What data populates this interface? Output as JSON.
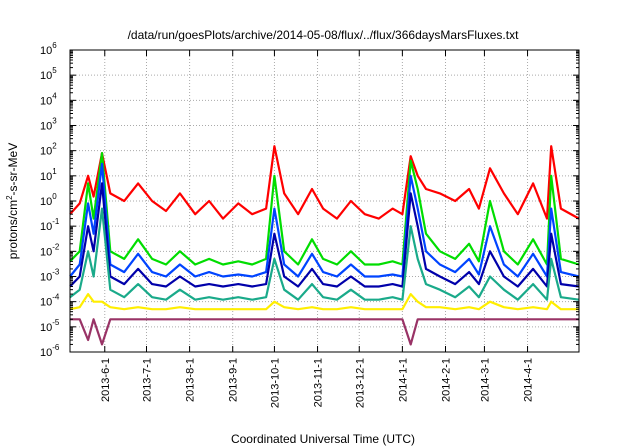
{
  "chart_data": {
    "type": "line",
    "title": "/data/run/goesPlots/archive/2014-05-08/flux/../flux/366daysMarsFluxes.txt",
    "xlabel": "Coordinated Universal Time (UTC)",
    "ylabel": {
      "prefix": "protons/cm",
      "sup": "2",
      "suffix": "-s-sr-MeV"
    },
    "scale": {
      "y": "log10"
    },
    "xlim": [
      "2013-05-07",
      "2014-05-08"
    ],
    "ylim": [
      1e-06,
      1000000.0
    ],
    "grid": true,
    "legend": "none",
    "y_tick_labels": [
      {
        "base": "10",
        "exp": "-6"
      },
      {
        "base": "10",
        "exp": "-5"
      },
      {
        "base": "10",
        "exp": "-4"
      },
      {
        "base": "10",
        "exp": "-3"
      },
      {
        "base": "10",
        "exp": "-2"
      },
      {
        "base": "10",
        "exp": "-1"
      },
      {
        "base": "10",
        "exp": "0"
      },
      {
        "base": "10",
        "exp": "1"
      },
      {
        "base": "10",
        "exp": "2"
      },
      {
        "base": "10",
        "exp": "3"
      },
      {
        "base": "10",
        "exp": "4"
      },
      {
        "base": "10",
        "exp": "5"
      },
      {
        "base": "10",
        "exp": "6"
      }
    ],
    "x_ticks": [
      {
        "label": "2013-6-1",
        "date": "2013-06-01"
      },
      {
        "label": "2013-7-1",
        "date": "2013-07-01"
      },
      {
        "label": "2013-8-1",
        "date": "2013-08-01"
      },
      {
        "label": "2013-9-1",
        "date": "2013-09-01"
      },
      {
        "label": "2013-10-1",
        "date": "2013-10-01"
      },
      {
        "label": "2013-11-1",
        "date": "2013-11-01"
      },
      {
        "label": "2013-12-1",
        "date": "2013-12-01"
      },
      {
        "label": "2014-1-1",
        "date": "2014-01-01"
      },
      {
        "label": "2014-2-1",
        "date": "2014-02-01"
      },
      {
        "label": "2014-3-1",
        "date": "2014-03-01"
      },
      {
        "label": "2014-4-1",
        "date": "2014-04-01"
      }
    ],
    "series": [
      {
        "color": "#ff0000",
        "x": [
          "2013-05-07",
          "2013-05-14",
          "2013-05-20",
          "2013-05-24",
          "2013-05-30",
          "2013-06-05",
          "2013-06-15",
          "2013-06-25",
          "2013-07-05",
          "2013-07-15",
          "2013-07-25",
          "2013-08-05",
          "2013-08-15",
          "2013-08-25",
          "2013-09-05",
          "2013-09-15",
          "2013-09-25",
          "2013-10-01",
          "2013-10-08",
          "2013-10-18",
          "2013-10-28",
          "2013-11-05",
          "2013-11-15",
          "2013-11-25",
          "2013-12-05",
          "2013-12-15",
          "2013-12-25",
          "2014-01-01",
          "2014-01-07",
          "2014-01-12",
          "2014-01-18",
          "2014-01-28",
          "2014-02-08",
          "2014-02-18",
          "2014-02-25",
          "2014-03-05",
          "2014-03-15",
          "2014-03-25",
          "2014-04-05",
          "2014-04-15",
          "2014-04-18",
          "2014-04-25",
          "2014-05-08"
        ],
        "y": [
          0.3,
          0.8,
          10,
          1.5,
          80,
          2,
          1,
          5,
          1,
          0.4,
          2,
          0.3,
          1,
          0.2,
          0.8,
          0.3,
          0.5,
          150,
          2,
          0.3,
          3,
          0.5,
          0.2,
          1,
          0.3,
          0.2,
          0.5,
          0.3,
          60,
          10,
          3,
          2,
          1,
          3,
          0.5,
          20,
          2,
          0.3,
          5,
          0.2,
          150,
          0.5,
          0.2
        ]
      },
      {
        "color": "#00dd00",
        "x": [
          "2013-05-07",
          "2013-05-14",
          "2013-05-20",
          "2013-05-24",
          "2013-05-30",
          "2013-06-05",
          "2013-06-15",
          "2013-06-25",
          "2013-07-05",
          "2013-07-15",
          "2013-07-25",
          "2013-08-05",
          "2013-08-15",
          "2013-08-25",
          "2013-09-05",
          "2013-09-15",
          "2013-09-25",
          "2013-10-01",
          "2013-10-08",
          "2013-10-18",
          "2013-10-28",
          "2013-11-05",
          "2013-11-15",
          "2013-11-25",
          "2013-12-05",
          "2013-12-15",
          "2013-12-25",
          "2014-01-01",
          "2014-01-07",
          "2014-01-12",
          "2014-01-18",
          "2014-01-28",
          "2014-02-08",
          "2014-02-18",
          "2014-02-25",
          "2014-03-05",
          "2014-03-15",
          "2014-03-25",
          "2014-04-05",
          "2014-04-15",
          "2014-04-18",
          "2014-04-25",
          "2014-05-08"
        ],
        "y": [
          0.004,
          0.01,
          5,
          0.2,
          80,
          0.01,
          0.005,
          0.03,
          0.005,
          0.003,
          0.01,
          0.003,
          0.005,
          0.003,
          0.004,
          0.003,
          0.005,
          10,
          0.01,
          0.003,
          0.03,
          0.005,
          0.003,
          0.01,
          0.003,
          0.003,
          0.004,
          0.003,
          40,
          3,
          0.05,
          0.01,
          0.005,
          0.02,
          0.004,
          1,
          0.01,
          0.003,
          0.03,
          0.003,
          10,
          0.005,
          0.003
        ]
      },
      {
        "color": "#0044ff",
        "x": [
          "2013-05-07",
          "2013-05-14",
          "2013-05-20",
          "2013-05-24",
          "2013-05-30",
          "2013-06-05",
          "2013-06-15",
          "2013-06-25",
          "2013-07-05",
          "2013-07-15",
          "2013-07-25",
          "2013-08-05",
          "2013-08-15",
          "2013-08-25",
          "2013-09-05",
          "2013-09-15",
          "2013-09-25",
          "2013-10-01",
          "2013-10-08",
          "2013-10-18",
          "2013-10-28",
          "2013-11-05",
          "2013-11-15",
          "2013-11-25",
          "2013-12-05",
          "2013-12-15",
          "2013-12-25",
          "2014-01-01",
          "2014-01-07",
          "2014-01-12",
          "2014-01-18",
          "2014-01-28",
          "2014-02-08",
          "2014-02-18",
          "2014-02-25",
          "2014-03-05",
          "2014-03-15",
          "2014-03-25",
          "2014-04-05",
          "2014-04-15",
          "2014-04-18",
          "2014-04-25",
          "2014-05-08"
        ],
        "y": [
          0.001,
          0.003,
          0.8,
          0.05,
          30,
          0.003,
          0.0015,
          0.008,
          0.0015,
          0.001,
          0.003,
          0.001,
          0.0015,
          0.001,
          0.0012,
          0.001,
          0.0015,
          0.5,
          0.003,
          0.001,
          0.008,
          0.0015,
          0.001,
          0.003,
          0.001,
          0.001,
          0.0012,
          0.001,
          10,
          0.5,
          0.01,
          0.003,
          0.0015,
          0.005,
          0.0012,
          0.1,
          0.003,
          0.001,
          0.008,
          0.001,
          0.5,
          0.0015,
          0.001
        ]
      },
      {
        "color": "#0000aa",
        "x": [
          "2013-05-07",
          "2013-05-14",
          "2013-05-20",
          "2013-05-24",
          "2013-05-30",
          "2013-06-05",
          "2013-06-15",
          "2013-06-25",
          "2013-07-05",
          "2013-07-15",
          "2013-07-25",
          "2013-08-05",
          "2013-08-15",
          "2013-08-25",
          "2013-09-05",
          "2013-09-15",
          "2013-09-25",
          "2013-10-01",
          "2013-10-08",
          "2013-10-18",
          "2013-10-28",
          "2013-11-05",
          "2013-11-15",
          "2013-11-25",
          "2013-12-05",
          "2013-12-15",
          "2013-12-25",
          "2014-01-01",
          "2014-01-07",
          "2014-01-12",
          "2014-01-18",
          "2014-01-28",
          "2014-02-08",
          "2014-02-18",
          "2014-02-25",
          "2014-03-05",
          "2014-03-15",
          "2014-03-25",
          "2014-04-05",
          "2014-04-15",
          "2014-04-18",
          "2014-04-25",
          "2014-05-08"
        ],
        "y": [
          0.0004,
          0.001,
          0.1,
          0.01,
          5,
          0.001,
          0.0005,
          0.002,
          0.0005,
          0.0004,
          0.001,
          0.0004,
          0.0005,
          0.0004,
          0.0005,
          0.0004,
          0.0005,
          0.05,
          0.001,
          0.0004,
          0.002,
          0.0005,
          0.0004,
          0.001,
          0.0004,
          0.0004,
          0.0005,
          0.0004,
          2,
          0.1,
          0.002,
          0.001,
          0.0005,
          0.0015,
          0.0005,
          0.01,
          0.001,
          0.0004,
          0.002,
          0.0004,
          0.05,
          0.0005,
          0.0004
        ]
      },
      {
        "color": "#1aaa8a",
        "x": [
          "2013-05-07",
          "2013-05-14",
          "2013-05-20",
          "2013-05-24",
          "2013-05-30",
          "2013-06-05",
          "2013-06-15",
          "2013-06-25",
          "2013-07-05",
          "2013-07-15",
          "2013-07-25",
          "2013-08-05",
          "2013-08-15",
          "2013-08-25",
          "2013-09-05",
          "2013-09-15",
          "2013-09-25",
          "2013-10-01",
          "2013-10-08",
          "2013-10-18",
          "2013-10-28",
          "2013-11-05",
          "2013-11-15",
          "2013-11-25",
          "2013-12-05",
          "2013-12-15",
          "2013-12-25",
          "2014-01-01",
          "2014-01-07",
          "2014-01-12",
          "2014-01-18",
          "2014-01-28",
          "2014-02-08",
          "2014-02-18",
          "2014-02-25",
          "2014-03-05",
          "2014-03-15",
          "2014-03-25",
          "2014-04-05",
          "2014-04-15",
          "2014-04-18",
          "2014-04-25",
          "2014-05-08"
        ],
        "y": [
          0.00015,
          0.0003,
          0.01,
          0.001,
          0.5,
          0.0003,
          0.00015,
          0.0005,
          0.00015,
          0.00012,
          0.0003,
          0.00012,
          0.00015,
          0.00012,
          0.00015,
          0.00012,
          0.00015,
          0.005,
          0.0003,
          0.00012,
          0.0005,
          0.00015,
          0.00012,
          0.0003,
          0.00012,
          0.00012,
          0.00015,
          0.00012,
          0.1,
          0.005,
          0.0005,
          0.0003,
          0.00015,
          0.0004,
          0.00015,
          0.001,
          0.0003,
          0.00012,
          0.0005,
          0.00012,
          0.005,
          0.00015,
          0.00012
        ]
      },
      {
        "color": "#ffee00",
        "x": [
          "2013-05-07",
          "2013-05-14",
          "2013-05-20",
          "2013-05-24",
          "2013-05-30",
          "2013-06-05",
          "2013-06-15",
          "2013-06-25",
          "2013-07-05",
          "2013-07-15",
          "2013-07-25",
          "2013-08-05",
          "2013-08-15",
          "2013-08-25",
          "2013-09-05",
          "2013-09-15",
          "2013-09-25",
          "2013-10-01",
          "2013-10-08",
          "2013-10-18",
          "2013-10-28",
          "2013-11-05",
          "2013-11-15",
          "2013-11-25",
          "2013-12-05",
          "2013-12-15",
          "2013-12-25",
          "2014-01-01",
          "2014-01-07",
          "2014-01-12",
          "2014-01-18",
          "2014-01-28",
          "2014-02-08",
          "2014-02-18",
          "2014-02-25",
          "2014-03-05",
          "2014-03-15",
          "2014-03-25",
          "2014-04-05",
          "2014-04-15",
          "2014-04-18",
          "2014-04-25",
          "2014-05-08"
        ],
        "y": [
          5e-05,
          6e-05,
          0.0002,
          0.0001,
          0.0001,
          6e-05,
          5e-05,
          6e-05,
          5e-05,
          5e-05,
          6e-05,
          5e-05,
          5e-05,
          5e-05,
          5e-05,
          5e-05,
          5e-05,
          0.0001,
          6e-05,
          5e-05,
          6e-05,
          5e-05,
          5e-05,
          6e-05,
          5e-05,
          5e-05,
          5e-05,
          5e-05,
          0.0002,
          0.0001,
          6e-05,
          6e-05,
          5e-05,
          6e-05,
          5e-05,
          0.0001,
          6e-05,
          5e-05,
          6e-05,
          5e-05,
          0.0001,
          5e-05,
          5e-05
        ]
      },
      {
        "color": "#993366",
        "x": [
          "2013-05-07",
          "2013-05-14",
          "2013-05-20",
          "2013-05-24",
          "2013-05-30",
          "2013-06-05",
          "2013-06-15",
          "2013-06-25",
          "2013-07-05",
          "2013-07-15",
          "2013-07-25",
          "2013-08-05",
          "2013-08-15",
          "2013-08-25",
          "2013-09-05",
          "2013-09-15",
          "2013-09-25",
          "2013-10-01",
          "2013-10-08",
          "2013-10-18",
          "2013-10-28",
          "2013-11-05",
          "2013-11-15",
          "2013-11-25",
          "2013-12-05",
          "2013-12-15",
          "2013-12-25",
          "2014-01-01",
          "2014-01-07",
          "2014-01-12",
          "2014-01-18",
          "2014-01-28",
          "2014-02-08",
          "2014-02-18",
          "2014-02-25",
          "2014-03-05",
          "2014-03-15",
          "2014-03-25",
          "2014-04-05",
          "2014-04-15",
          "2014-04-18",
          "2014-04-25",
          "2014-05-08"
        ],
        "y": [
          2e-05,
          2e-05,
          3e-06,
          2e-05,
          2e-06,
          2e-05,
          2e-05,
          2e-05,
          2e-05,
          2e-05,
          2e-05,
          2e-05,
          2e-05,
          2e-05,
          2e-05,
          2e-05,
          2e-05,
          2e-05,
          2e-05,
          2e-05,
          2e-05,
          2e-05,
          2e-05,
          2e-05,
          2e-05,
          2e-05,
          2e-05,
          2e-05,
          2e-06,
          2e-05,
          2e-05,
          2e-05,
          2e-05,
          2e-05,
          2e-05,
          2e-05,
          2e-05,
          2e-05,
          2e-05,
          2e-05,
          2e-05,
          2e-05,
          2e-05
        ]
      }
    ]
  }
}
